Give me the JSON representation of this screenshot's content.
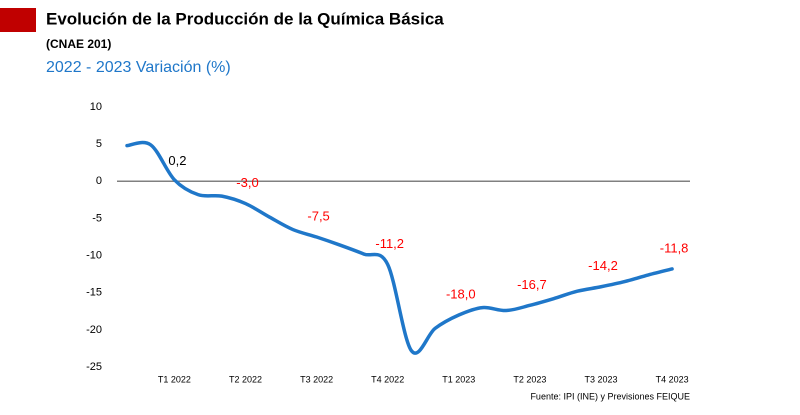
{
  "chart_data": {
    "type": "line",
    "title": "Evolución de la Producción de la Química Básica",
    "subtitle": "(CNAE 201)",
    "y_label": "2022  - 2023 Variación (%)",
    "source": "Fuente: IPI (INE) y Previsiones FEIQUE",
    "categories": [
      null,
      null,
      "T1 2022",
      null,
      null,
      "T2 2022",
      null,
      null,
      "T3 2022",
      null,
      null,
      "T4 2022",
      null,
      null,
      "T1 2023",
      null,
      null,
      "T2 2023",
      null,
      null,
      "T3 2023",
      null,
      null,
      "T4 2023"
    ],
    "series": [
      {
        "name": "Variación",
        "color": "#1f77c9",
        "values": [
          4.8,
          4.9,
          0.2,
          -1.8,
          -2.0,
          -3.0,
          -4.8,
          -6.5,
          -7.5,
          -8.6,
          -9.8,
          -11.2,
          -22.8,
          -19.8,
          -18.0,
          -17.0,
          -17.4,
          -16.7,
          -15.8,
          -14.8,
          -14.2,
          -13.5,
          -12.6,
          -11.8
        ],
        "value_labels": [
          null,
          null,
          "0,2",
          null,
          null,
          "-3,0",
          null,
          null,
          "-7,5",
          null,
          null,
          "-11,2",
          null,
          null,
          "-18,0",
          null,
          null,
          "-16,7",
          null,
          null,
          "-14,2",
          null,
          null,
          "-11,8"
        ]
      }
    ],
    "ylim": [
      -25,
      10
    ],
    "yticks": [
      -25,
      -20,
      -15,
      -10,
      -5,
      0,
      5,
      10
    ],
    "zero_line": true,
    "zero_line_color": "#808080",
    "negative_label_color": "#ff0000",
    "positive_label_color": "#000000"
  }
}
